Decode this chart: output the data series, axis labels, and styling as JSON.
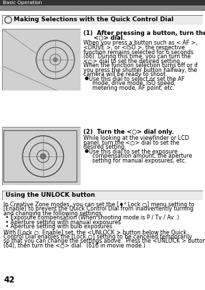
{
  "page_num": "42",
  "header_text": "Basic Operation",
  "section1_title": "Making Selections with the Quick Control Dial",
  "item1_bold1": "(1)  After pressing a button, turn the",
  "item1_bold2": "     <○> dial.",
  "item1_lines": [
    "When you press a button such as < AF >,",
    "<DRIVE >, or <ISO >, the respective",
    "function remains selected for 6 seconds",
    "(δ6). During this time, you can turn the",
    "<○> dial to set the desired setting.",
    "When the function selection turns off or if",
    "you press the shutter button halfway, the",
    "camera will be ready to shoot."
  ],
  "item1_bullet_lines": [
    "Use this dial to select or set the AF",
    "  mode, drive mode, ISO speed,",
    "  metering mode, AF point, etc."
  ],
  "item2_bold": "(2)  Turn the <○> dial only.",
  "item2_lines": [
    "While looking at the viewfinder or LCD",
    "panel, turn the <○> dial to set the",
    "desired setting."
  ],
  "item2_bullet_lines": [
    "Use this dial to set the exposure",
    "  compensation amount, the aperture",
    "  setting for manual exposures, etc."
  ],
  "section2_title": "Using the UNLOCK button",
  "s2_lines1": [
    "In Creative Zone modes, you can set the [♦² Lock ○] menu setting to",
    "[Enable] to prevent the Quick Control Dial from inadvertently turning",
    "and changing the following settings:"
  ],
  "s2_bullets": [
    "• Exposure compensation (When shooting mode is P / Tv / Av .)",
    "• Aperture setting with manual exposures",
    "• Aperture setting with bulb exposures"
  ],
  "s2_lines2": [
    "With [Lock ○: Enable] set, the <UNLOCK > button below the Quick",
    "Control Dial enables the [Lock ○] setting to be canceled temporarily",
    "so that you can change the settings above.  Press the <UNLOCK > button",
    "(δ4), then turn the <○> dial.  (δ16 in movie mode.)"
  ],
  "bg_color": "#ffffff",
  "header_dark": "#333333",
  "header_mid": "#888888",
  "section_box_bg": "#ececec",
  "section_box_edge": "#666666",
  "img_bg": "#d0d0d0",
  "img_border": "#888888",
  "fs_header": 5.2,
  "fs_body": 5.8,
  "fs_bold": 6.2,
  "fs_section": 6.5,
  "fs_pagenum": 8.5,
  "lh": 0.0155
}
